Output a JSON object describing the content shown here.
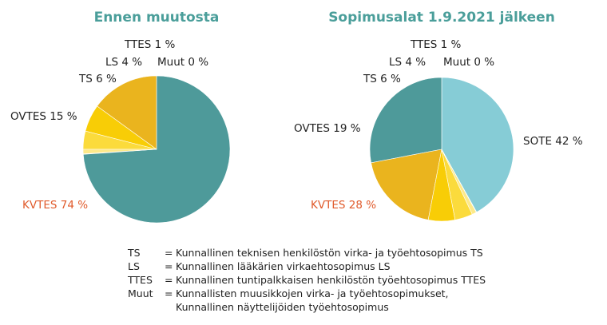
{
  "chart_data": [
    {
      "type": "pie",
      "title": "Ennen muutosta",
      "slices": [
        {
          "label": "KVTES",
          "value": 74,
          "display": "KVTES 74 %",
          "color": "#4e9a9a",
          "highlight": true
        },
        {
          "label": "OVTES",
          "value": 15,
          "display": "OVTES 15 %",
          "color": "#eab41e",
          "highlight": false
        },
        {
          "label": "TS",
          "value": 6,
          "display": "TS 6 %",
          "color": "#f8cd06",
          "highlight": false
        },
        {
          "label": "LS",
          "value": 4,
          "display": "LS 4 %",
          "color": "#fbdb3c",
          "highlight": false
        },
        {
          "label": "TTES",
          "value": 1,
          "display": "TTES 1 %",
          "color": "#fde98a",
          "highlight": false
        },
        {
          "label": "Muut",
          "value": 0,
          "display": "Muut 0 %",
          "color": "#fef3c0",
          "highlight": false
        }
      ]
    },
    {
      "type": "pie",
      "title": "Sopimusalat 1.9.2021 jälkeen",
      "slices": [
        {
          "label": "SOTE",
          "value": 42,
          "display": "SOTE 42 %",
          "color": "#86ccd6",
          "highlight": false
        },
        {
          "label": "KVTES",
          "value": 28,
          "display": "KVTES 28 %",
          "color": "#4e9a9a",
          "highlight": true
        },
        {
          "label": "OVTES",
          "value": 19,
          "display": "OVTES 19 %",
          "color": "#eab41e",
          "highlight": false
        },
        {
          "label": "TS",
          "value": 6,
          "display": "TS 6 %",
          "color": "#f8cd06",
          "highlight": false
        },
        {
          "label": "LS",
          "value": 4,
          "display": "LS 4 %",
          "color": "#fbdb3c",
          "highlight": false
        },
        {
          "label": "TTES",
          "value": 1,
          "display": "TTES 1 %",
          "color": "#fde98a",
          "highlight": false
        },
        {
          "label": "Muut",
          "value": 0,
          "display": "Muut 0 %",
          "color": "#fef3c0",
          "highlight": false
        }
      ]
    }
  ],
  "legend": [
    {
      "abbr": "TS",
      "eq": "=",
      "desc": "Kunnallinen teknisen henkilöstön virka- ja työehtosopimus TS"
    },
    {
      "abbr": "LS",
      "eq": "=",
      "desc": "Kunnallinen lääkärien virkaehtosopimus LS"
    },
    {
      "abbr": "TTES",
      "eq": "=",
      "desc": "Kunnallinen tuntipalkkaisen henkilöstön työehtosopimus TTES"
    },
    {
      "abbr": "Muut",
      "eq": "=",
      "desc": "Kunnallisten muusikkojen virka- ja työehtosopimukset,\nKunnallinen näyttelijöiden työehtosopimus"
    }
  ],
  "colors": {
    "title": "#4a9e9a",
    "highlight_label": "#e05a2b"
  }
}
